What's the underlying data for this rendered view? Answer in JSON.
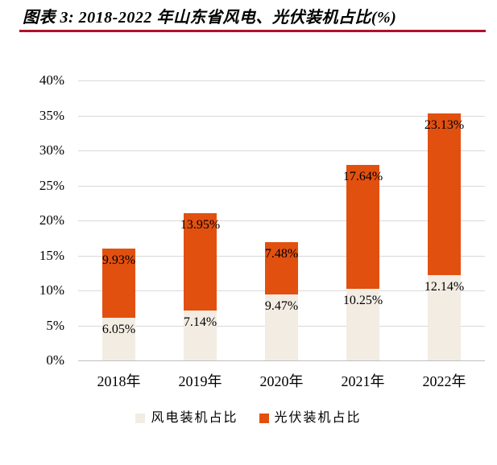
{
  "style": {
    "background": "#FFFFFF",
    "accent_rule": "#B0122B",
    "gridline": "#D9D9D9",
    "axisline": "#BFBFBF",
    "text": "#000000"
  },
  "chart_data": {
    "type": "bar",
    "stacked": true,
    "title": "图表 3: 2018-2022 年山东省风电、光伏装机占比(%)",
    "categories": [
      "2018年",
      "2019年",
      "2020年",
      "2021年",
      "2022年"
    ],
    "series": [
      {
        "key": "wind",
        "name": "风电装机占比",
        "color": "#F2ECE3",
        "values": [
          6.05,
          7.14,
          9.47,
          10.25,
          12.14
        ],
        "data_labels": [
          "6.05%",
          "7.14%",
          "9.47%",
          "10.25%",
          "12.14%"
        ]
      },
      {
        "key": "solar",
        "name": "光伏装机占比",
        "color": "#E2500F",
        "values": [
          9.93,
          13.95,
          7.48,
          17.64,
          23.13
        ],
        "data_labels": [
          "9.93%",
          "13.95%",
          "7.48%",
          "17.64%",
          "23.13%"
        ]
      }
    ],
    "ylim": [
      0,
      40
    ],
    "yticks": [
      {
        "value": 0,
        "label": "0%"
      },
      {
        "value": 5,
        "label": "5%"
      },
      {
        "value": 10,
        "label": "10%"
      },
      {
        "value": 15,
        "label": "15%"
      },
      {
        "value": 20,
        "label": "20%"
      },
      {
        "value": 25,
        "label": "25%"
      },
      {
        "value": 30,
        "label": "30%"
      },
      {
        "value": 35,
        "label": "35%"
      },
      {
        "value": 40,
        "label": "40%"
      }
    ],
    "grid": true,
    "data_label_position": "inside-end",
    "legend_position": "bottom"
  }
}
